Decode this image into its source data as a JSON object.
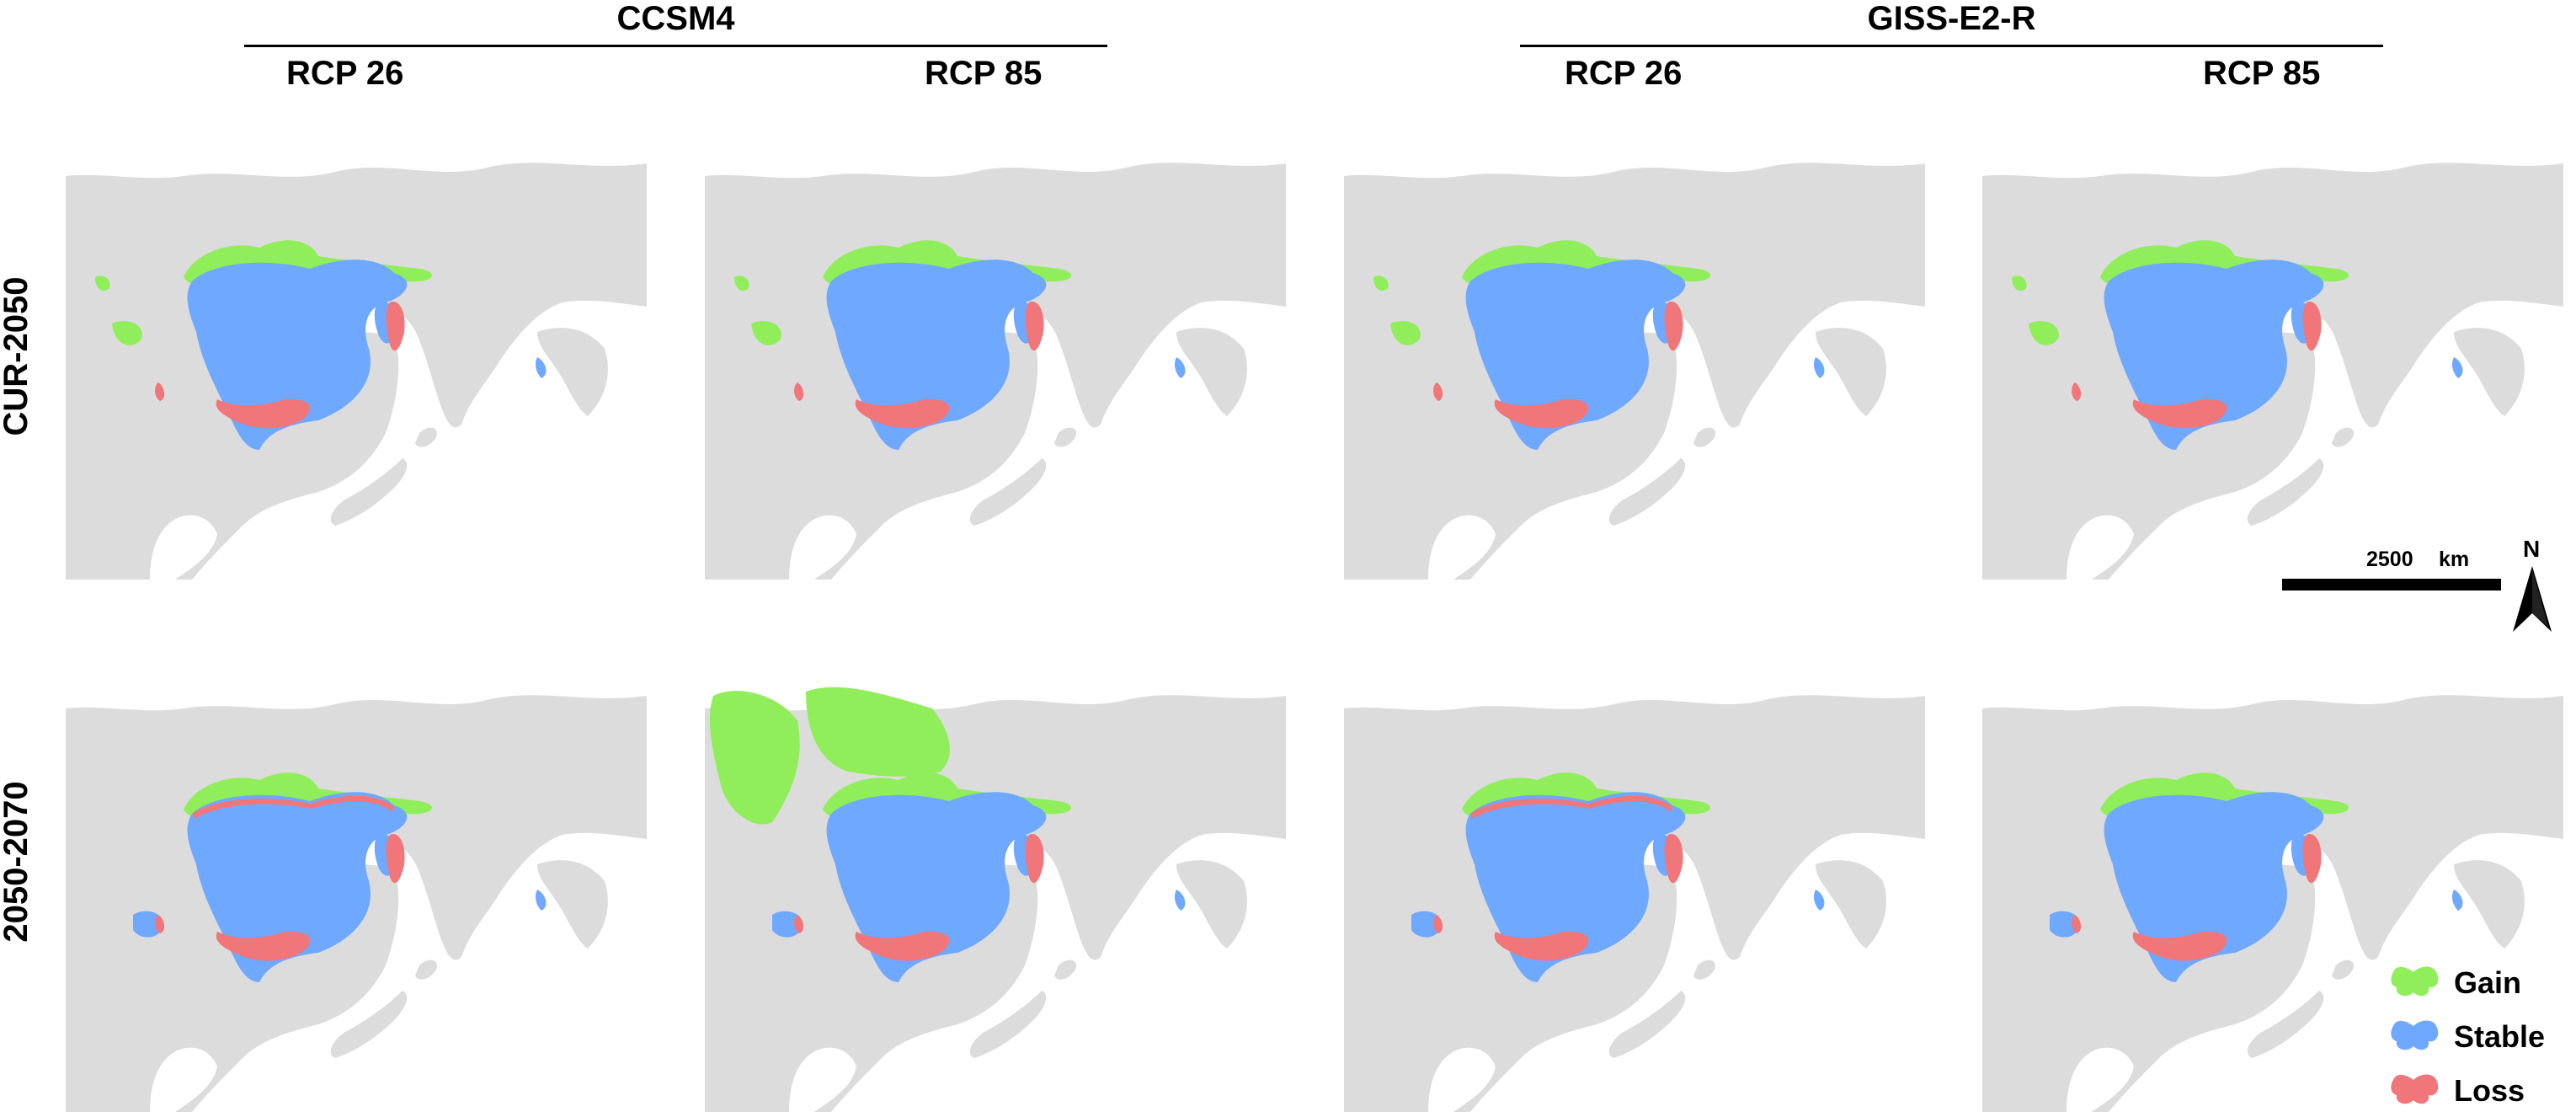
{
  "models": [
    {
      "name": "CCSM4",
      "scenarios": [
        "RCP 26",
        "RCP 85"
      ]
    },
    {
      "name": "GISS-E2-R",
      "scenarios": [
        "RCP 26",
        "RCP 85"
      ]
    }
  ],
  "periods": [
    "CUR-2050",
    "2050-2070"
  ],
  "scale_bar": {
    "value": "2500",
    "unit": "km"
  },
  "north_arrow": {
    "label": "N",
    "icon": "north-arrow-icon"
  },
  "legend": [
    {
      "label": "Gain",
      "color": "#90ee5a"
    },
    {
      "label": "Stable",
      "color": "#6fa8ff"
    },
    {
      "label": "Loss",
      "color": "#f0767a"
    }
  ],
  "colors": {
    "land": "#dcdcdc",
    "sea": "#ffffff",
    "gain": "#90ee5a",
    "stable": "#6fa8ff",
    "loss": "#f0767a"
  }
}
